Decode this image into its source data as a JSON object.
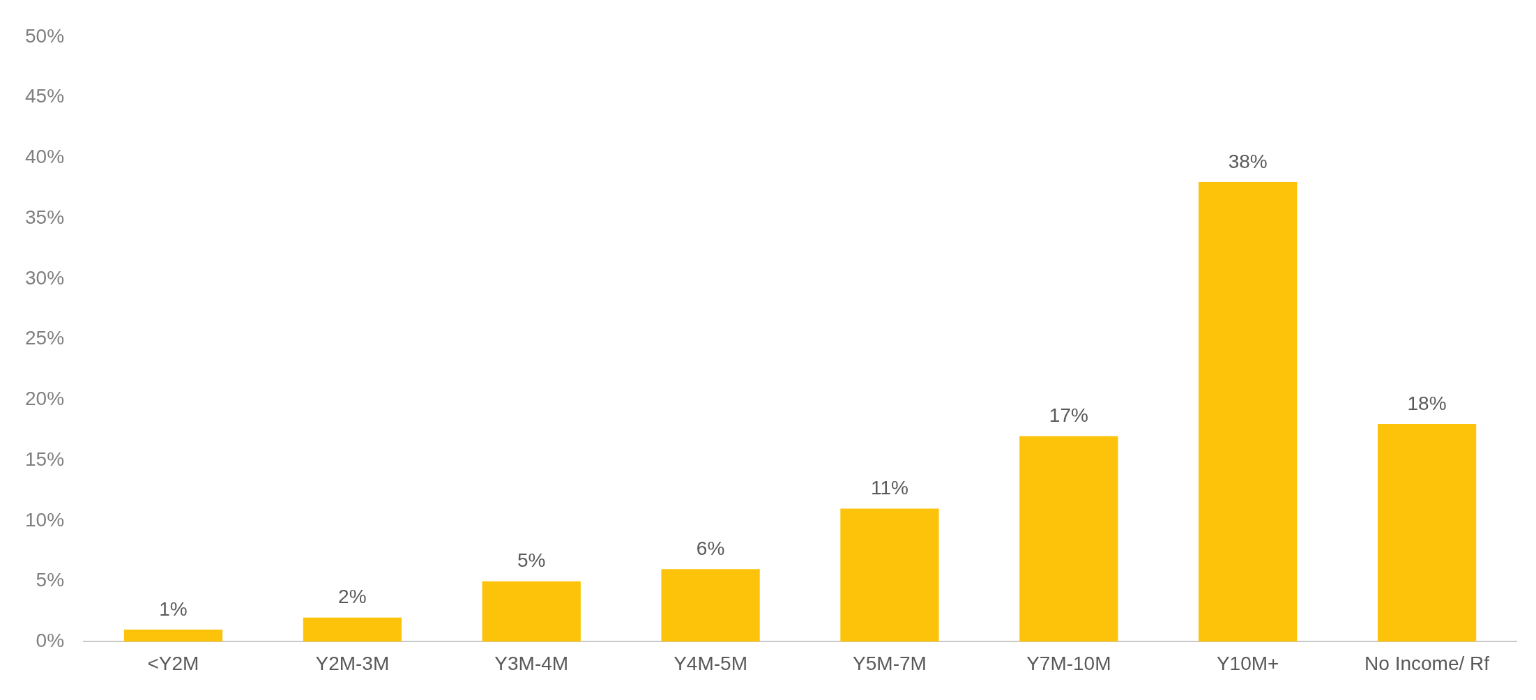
{
  "chart_data": {
    "type": "bar",
    "categories": [
      "<Y2M",
      "Y2M-3M",
      "Y3M-4M",
      "Y4M-5M",
      "Y5M-7M",
      "Y7M-10M",
      "Y10M+",
      "No Income/ Rf"
    ],
    "values": [
      1,
      2,
      5,
      6,
      11,
      17,
      38,
      18
    ],
    "value_labels": [
      "1%",
      "2%",
      "5%",
      "6%",
      "11%",
      "17%",
      "38%",
      "18%"
    ],
    "color": "#fdc30b",
    "ylim": [
      0,
      50
    ],
    "yticks": [
      {
        "value": 0,
        "label": "0%"
      },
      {
        "value": 5,
        "label": "5%"
      },
      {
        "value": 10,
        "label": "10%"
      },
      {
        "value": 15,
        "label": "15%"
      },
      {
        "value": 20,
        "label": "20%"
      },
      {
        "value": 25,
        "label": "25%"
      },
      {
        "value": 30,
        "label": "30%"
      },
      {
        "value": 35,
        "label": "35%"
      },
      {
        "value": 40,
        "label": "40%"
      },
      {
        "value": 45,
        "label": "45%"
      },
      {
        "value": 50,
        "label": "50%"
      }
    ],
    "grid": false,
    "legend": false
  }
}
